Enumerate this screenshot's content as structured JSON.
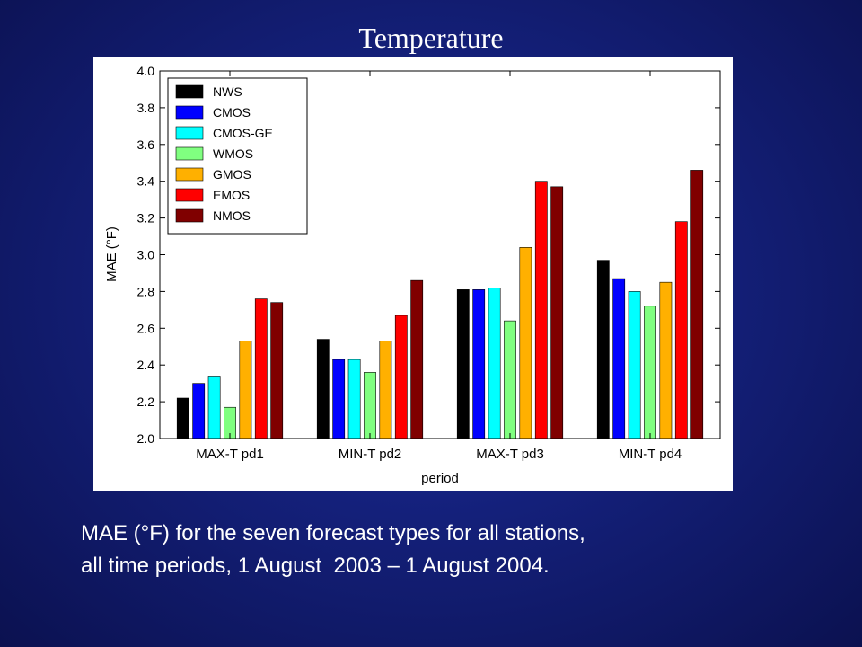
{
  "slide": {
    "title": "Temperature",
    "caption_line1": "MAE (°F) for the seven forecast types for all stations,",
    "caption_line2": "all time periods, 1 August  2003 – 1 August 2004."
  },
  "chart_data": {
    "type": "bar",
    "title": "",
    "xlabel": "period",
    "ylabel": "MAE (°F)",
    "ylim": [
      2.0,
      4.0
    ],
    "yticks": [
      "2.0",
      "2.2",
      "2.4",
      "2.6",
      "2.8",
      "3.0",
      "3.2",
      "3.4",
      "3.6",
      "3.8",
      "4.0"
    ],
    "legend_position": "top-left",
    "categories": [
      "MAX-T pd1",
      "MIN-T pd2",
      "MAX-T pd3",
      "MIN-T pd4"
    ],
    "series": [
      {
        "name": "NWS",
        "color": "#000000",
        "values": [
          2.22,
          2.54,
          2.81,
          2.97
        ]
      },
      {
        "name": "CMOS",
        "color": "#0000ff",
        "values": [
          2.3,
          2.43,
          2.81,
          2.87
        ]
      },
      {
        "name": "CMOS-GE",
        "color": "#00ffff",
        "values": [
          2.34,
          2.43,
          2.82,
          2.8
        ]
      },
      {
        "name": "WMOS",
        "color": "#80ff80",
        "values": [
          2.17,
          2.36,
          2.64,
          2.72
        ]
      },
      {
        "name": "GMOS",
        "color": "#ffb000",
        "values": [
          2.53,
          2.53,
          3.04,
          2.85
        ]
      },
      {
        "name": "EMOS",
        "color": "#ff0000",
        "values": [
          2.76,
          2.67,
          3.4,
          3.18
        ]
      },
      {
        "name": "NMOS",
        "color": "#800000",
        "values": [
          2.74,
          2.86,
          3.37,
          3.46
        ]
      }
    ]
  }
}
